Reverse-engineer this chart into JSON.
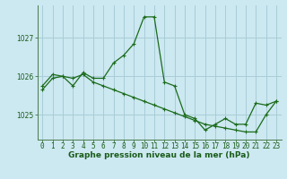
{
  "title": "Graphe pression niveau de la mer (hPa)",
  "background_color": "#cce8f0",
  "grid_color": "#a8cdd8",
  "line_color": "#1a6b1a",
  "xlim": [
    -0.5,
    23.5
  ],
  "ylim": [
    1024.35,
    1027.85
  ],
  "yticks": [
    1025,
    1026,
    1027
  ],
  "xticks": [
    0,
    1,
    2,
    3,
    4,
    5,
    6,
    7,
    8,
    9,
    10,
    11,
    12,
    13,
    14,
    15,
    16,
    17,
    18,
    19,
    20,
    21,
    22,
    23
  ],
  "series1_x": [
    0,
    1,
    2,
    3,
    4,
    5,
    6,
    7,
    8,
    9,
    10,
    11,
    12,
    13,
    14,
    15,
    16,
    17,
    18,
    19,
    20,
    21,
    22,
    23
  ],
  "series1_y": [
    1025.65,
    1025.95,
    1026.0,
    1025.75,
    1026.1,
    1025.95,
    1025.95,
    1026.35,
    1026.55,
    1026.85,
    1027.55,
    1027.55,
    1025.85,
    1025.75,
    1025.0,
    1024.9,
    1024.6,
    1024.75,
    1024.9,
    1024.75,
    1024.75,
    1025.3,
    1025.25,
    1025.35
  ],
  "series2_x": [
    0,
    1,
    2,
    3,
    4,
    5,
    6,
    7,
    8,
    9,
    10,
    11,
    12,
    13,
    14,
    15,
    16,
    17,
    18,
    19,
    20,
    21,
    22,
    23
  ],
  "series2_y": [
    1025.75,
    1026.05,
    1026.0,
    1025.95,
    1026.05,
    1025.85,
    1025.75,
    1025.65,
    1025.55,
    1025.45,
    1025.35,
    1025.25,
    1025.15,
    1025.05,
    1024.95,
    1024.85,
    1024.75,
    1024.7,
    1024.65,
    1024.6,
    1024.55,
    1024.55,
    1025.0,
    1025.35
  ],
  "title_fontsize": 6.5,
  "tick_fontsize": 5.5,
  "linewidth": 0.9,
  "markersize": 2.5
}
